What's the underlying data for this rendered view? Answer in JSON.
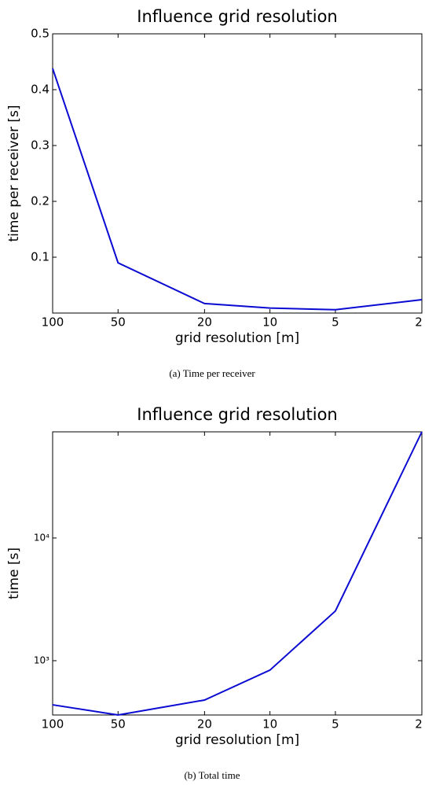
{
  "chart_data": [
    {
      "type": "line",
      "title": "Influence grid resolution",
      "x_label": "grid resolution [m]",
      "y_label": "time per receiver [s]",
      "caption": "(a)  Time per receiver",
      "x": [
        100,
        50,
        20,
        10,
        5,
        2
      ],
      "values": [
        0.438,
        0.09,
        0.017,
        0.009,
        0.006,
        0.024
      ],
      "color": "#0a0ad2",
      "xscale": "log",
      "yscale": "linear",
      "xlim": [
        100,
        2
      ],
      "xticks": [
        100,
        50,
        20,
        10,
        5,
        2
      ],
      "ylim": [
        0,
        0.5
      ],
      "yticks": [
        0.1,
        0.2,
        0.3,
        0.4,
        0.5
      ]
    },
    {
      "type": "line",
      "title": "Influence grid resolution",
      "x_label": "grid resolution [m]",
      "y_label": "time [s]",
      "caption": "(b)  Total time",
      "x": [
        100,
        50,
        20,
        10,
        5,
        2
      ],
      "values": [
        437,
        361,
        478,
        838,
        2540,
        73300
      ],
      "color": "#0a0ad2",
      "xscale": "log",
      "yscale": "log",
      "xlim": [
        100,
        2
      ],
      "xticks": [
        100,
        50,
        20,
        10,
        5,
        2
      ],
      "ylim": [
        361,
        73300
      ],
      "yticks": [
        {
          "value": 1000,
          "label": "10³"
        },
        {
          "value": 10000,
          "label": "10⁴"
        }
      ]
    }
  ]
}
